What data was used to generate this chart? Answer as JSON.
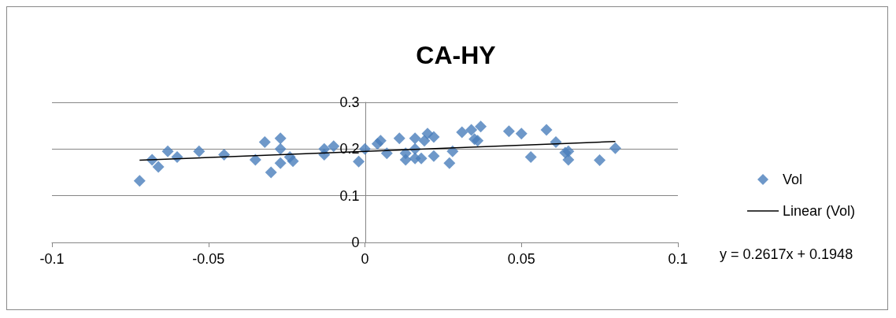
{
  "chart_data": {
    "type": "scatter",
    "title": "CA-HY",
    "xlim": [
      -0.1,
      0.1
    ],
    "xticks": [
      -0.1,
      -0.05,
      0,
      0.05,
      0.1
    ],
    "ylim": [
      0,
      0.3
    ],
    "yticks": [
      0,
      0.1,
      0.2,
      0.3
    ],
    "grid": "y",
    "legend": "right",
    "series": [
      {
        "name": "Vol",
        "type": "scatter",
        "marker": "diamond",
        "color": "#4a7ebb",
        "x": [
          -0.072,
          -0.068,
          -0.066,
          -0.063,
          -0.06,
          -0.053,
          -0.045,
          -0.035,
          -0.032,
          -0.03,
          -0.027,
          -0.027,
          -0.027,
          -0.024,
          -0.023,
          -0.013,
          -0.013,
          -0.01,
          -0.002,
          0.0,
          0.005,
          0.004,
          0.007,
          0.011,
          0.013,
          0.013,
          0.016,
          0.016,
          0.016,
          0.018,
          0.019,
          0.02,
          0.022,
          0.022,
          0.027,
          0.028,
          0.031,
          0.034,
          0.035,
          0.036,
          0.037,
          0.046,
          0.05,
          0.053,
          0.058,
          0.061,
          0.064,
          0.065,
          0.065,
          0.075,
          0.08
        ],
        "values": [
          0.132,
          0.177,
          0.162,
          0.195,
          0.183,
          0.195,
          0.188,
          0.177,
          0.215,
          0.15,
          0.223,
          0.2,
          0.17,
          0.183,
          0.174,
          0.188,
          0.2,
          0.206,
          0.173,
          0.2,
          0.218,
          0.211,
          0.191,
          0.223,
          0.191,
          0.177,
          0.223,
          0.2,
          0.18,
          0.18,
          0.218,
          0.233,
          0.226,
          0.185,
          0.17,
          0.195,
          0.236,
          0.241,
          0.221,
          0.218,
          0.248,
          0.238,
          0.233,
          0.183,
          0.241,
          0.215,
          0.192,
          0.195,
          0.177,
          0.176,
          0.202
        ]
      },
      {
        "name": "Linear (Vol)",
        "type": "line",
        "marker": "none",
        "color": "#000000",
        "x": [
          -0.072,
          0.08
        ],
        "values": [
          0.176,
          0.216
        ]
      }
    ],
    "annotations": [
      "y = 0.2617x + 0.1948"
    ]
  }
}
